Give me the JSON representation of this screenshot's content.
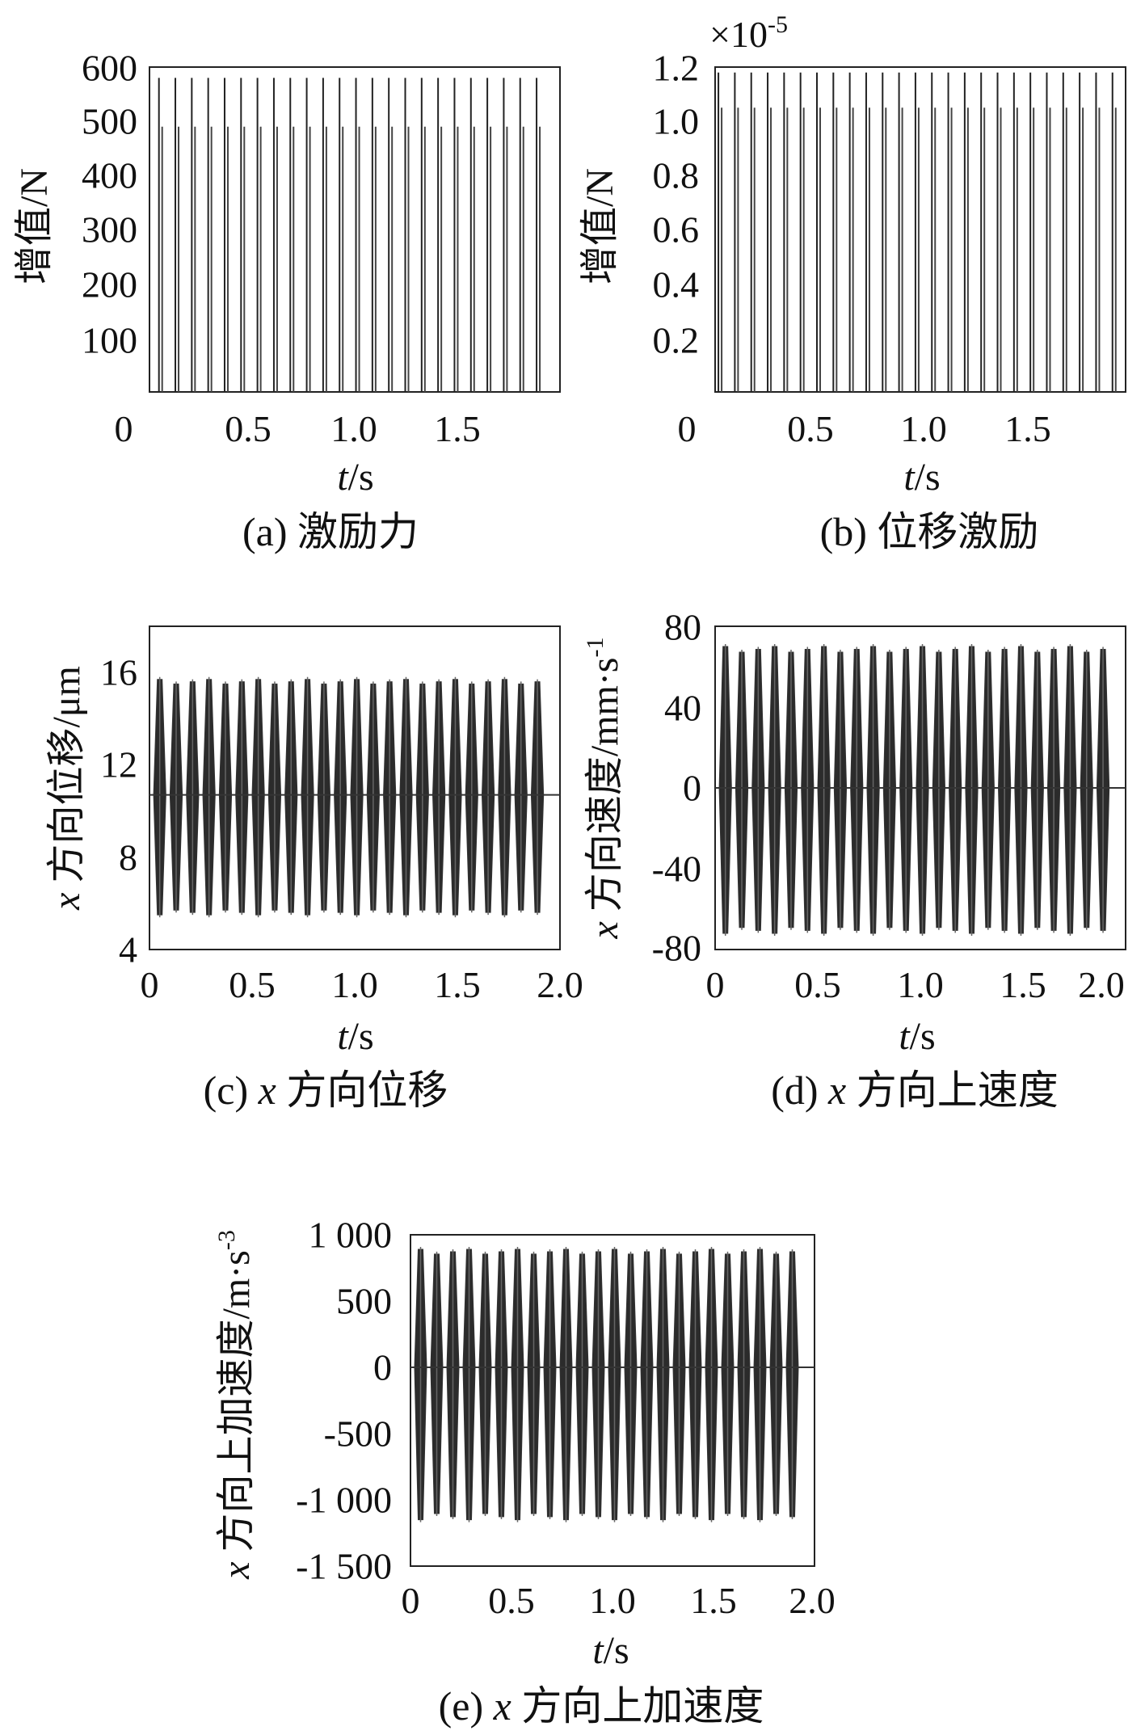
{
  "chart_data": [
    {
      "id": "a",
      "type": "line",
      "caption": "(a) 激励力",
      "xlabel_italic": "t",
      "xlabel_rest": "/s",
      "ylabel": "增值/N",
      "xlim": [
        0,
        2.0
      ],
      "ylim": [
        0,
        600
      ],
      "xticks": [
        0,
        0.5,
        1.0,
        1.5
      ],
      "xtick_labels": [
        "0",
        "0.5",
        "1.0",
        "1.5"
      ],
      "yticks": [
        100,
        200,
        300,
        400,
        500,
        600
      ],
      "ytick_labels": [
        "100",
        "200",
        "300",
        "400",
        "500",
        "600"
      ],
      "exponent_label": "",
      "series": [
        {
          "pattern": "pulse-train",
          "x_start": 0.05,
          "x_end": 1.95,
          "period": 0.08,
          "baseline": 0,
          "peak_values": [
            580,
            490
          ]
        }
      ]
    },
    {
      "id": "b",
      "type": "line",
      "caption": "(b) 位移激励",
      "xlabel_italic": "t",
      "xlabel_rest": "/s",
      "ylabel": "增值/N",
      "xlim": [
        0,
        2.0
      ],
      "ylim": [
        0,
        1.2
      ],
      "xticks": [
        0,
        0.5,
        1.0,
        1.5
      ],
      "xtick_labels": [
        "0",
        "0.5",
        "1.0",
        "1.5"
      ],
      "yticks": [
        0.2,
        0.4,
        0.6,
        0.8,
        1.0,
        1.2
      ],
      "ytick_labels": [
        "0.2",
        "0.4",
        "0.6",
        "0.8",
        "1.0",
        "1.2"
      ],
      "exponent_label": "×10",
      "exponent_power": "-5",
      "series": [
        {
          "pattern": "pulse-train",
          "x_start": 0.02,
          "x_end": 1.98,
          "period": 0.08,
          "baseline": 0,
          "peak_values": [
            1.18,
            1.05
          ]
        }
      ]
    },
    {
      "id": "c",
      "type": "line",
      "caption_prefix": "(c) ",
      "caption_italic": "x",
      "caption_rest": " 方向位移",
      "xlabel_italic": "t",
      "xlabel_rest": "/s",
      "ylabel_italic": "x",
      "ylabel_rest": " 方向位移/μm",
      "xlim": [
        0,
        2.0
      ],
      "ylim": [
        4,
        18
      ],
      "xticks": [
        0,
        0.5,
        1.0,
        1.5,
        2.0
      ],
      "xtick_labels": [
        "0",
        "0.5",
        "1.0",
        "1.5",
        "2.0"
      ],
      "yticks": [
        4,
        8,
        12,
        16
      ],
      "ytick_labels": [
        "4",
        "8",
        "12",
        "16"
      ],
      "series": [
        {
          "pattern": "burst-train",
          "x_start": 0.05,
          "x_end": 1.95,
          "period": 0.08,
          "center": 10.7,
          "upper_peak": 15.7,
          "lower_peak": 5.5
        }
      ]
    },
    {
      "id": "d",
      "type": "line",
      "caption_prefix": "(d) ",
      "caption_italic": "x",
      "caption_rest": " 方向上速度",
      "xlabel_italic": "t",
      "xlabel_rest": "/s",
      "ylabel_italic": "x",
      "ylabel_rest": " 方向速度/mm·s",
      "ylabel_sup": "-1",
      "xlim": [
        0,
        2.0
      ],
      "ylim": [
        -80,
        80
      ],
      "xticks": [
        0,
        0.5,
        1.0,
        1.5,
        2.0
      ],
      "xtick_labels": [
        "0",
        "0.5",
        "1.0",
        "1.5",
        "2.0"
      ],
      "yticks": [
        -80,
        -40,
        0,
        40,
        80
      ],
      "ytick_labels": [
        "-80",
        "-40",
        "0",
        "40",
        "80"
      ],
      "series": [
        {
          "pattern": "burst-train",
          "x_start": 0.05,
          "x_end": 1.95,
          "period": 0.08,
          "center": 0,
          "upper_peak": 70,
          "lower_peak": -72
        }
      ]
    },
    {
      "id": "e",
      "type": "line",
      "caption_prefix": "(e) ",
      "caption_italic": "x",
      "caption_rest": " 方向上加速度",
      "xlabel_italic": "t",
      "xlabel_rest": "/s",
      "ylabel_italic": "x",
      "ylabel_rest": " 方向上加速度/m·s",
      "ylabel_sup": "-3",
      "xlim": [
        0,
        2.0
      ],
      "ylim": [
        -1500,
        1000
      ],
      "xticks": [
        0,
        0.5,
        1.0,
        1.5,
        2.0
      ],
      "xtick_labels": [
        "0",
        "0.5",
        "1.0",
        "1.5",
        "2.0"
      ],
      "yticks": [
        -1500,
        -1000,
        -500,
        0,
        500,
        1000
      ],
      "ytick_labels": [
        "-1 500",
        "-1 000",
        "-500",
        "0",
        "500",
        "1 000"
      ],
      "series": [
        {
          "pattern": "burst-train",
          "x_start": 0.05,
          "x_end": 1.95,
          "period": 0.08,
          "center": 0,
          "upper_peak": 890,
          "lower_peak": -1150
        }
      ]
    }
  ]
}
